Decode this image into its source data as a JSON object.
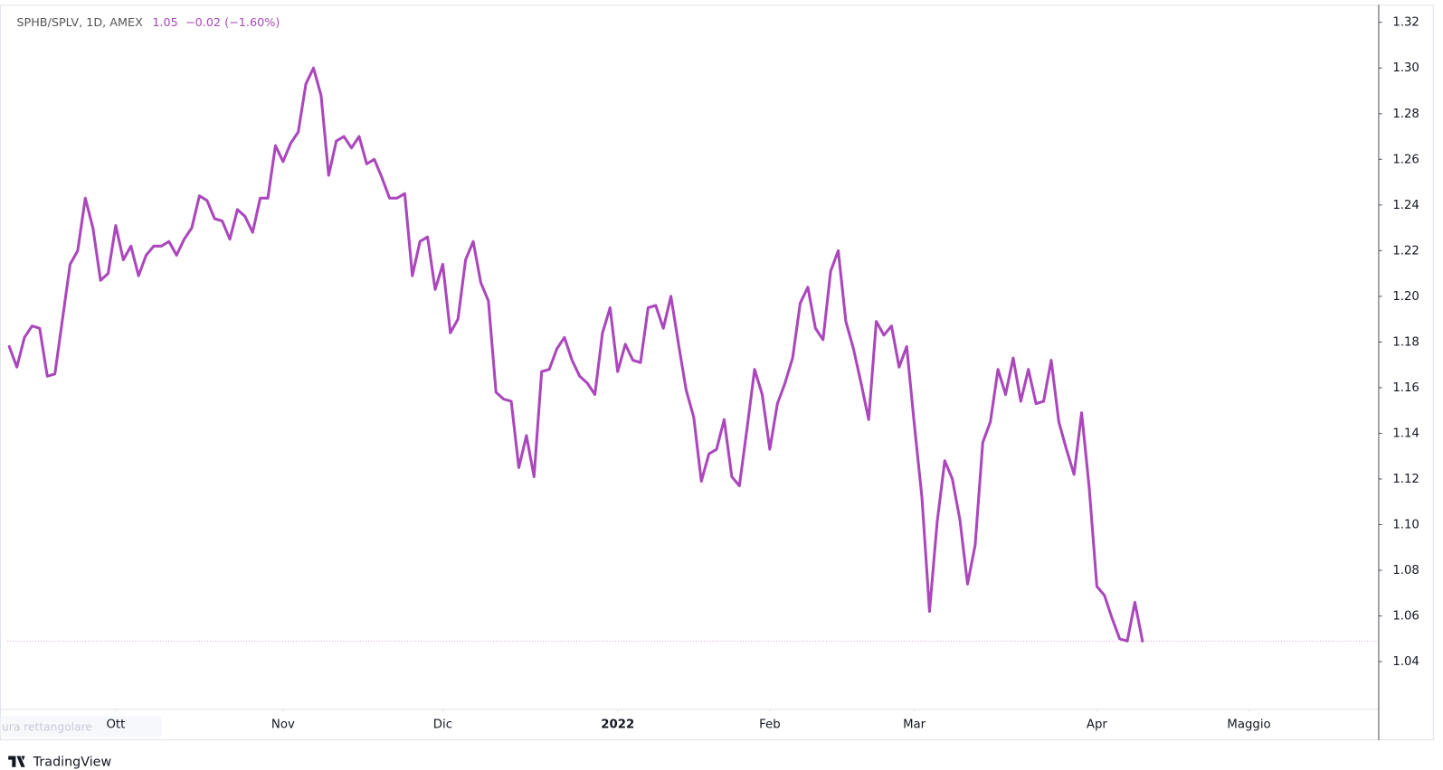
{
  "chart_data": {
    "type": "line",
    "series": [
      {
        "name": "SPHB/SPLV, 1D, AMEX",
        "color": "#ab47bc",
        "values": [
          1.178,
          1.169,
          1.182,
          1.187,
          1.186,
          1.165,
          1.166,
          1.19,
          1.214,
          1.22,
          1.243,
          1.23,
          1.207,
          1.21,
          1.231,
          1.216,
          1.222,
          1.209,
          1.218,
          1.222,
          1.222,
          1.224,
          1.218,
          1.225,
          1.23,
          1.244,
          1.242,
          1.234,
          1.233,
          1.225,
          1.238,
          1.235,
          1.228,
          1.243,
          1.243,
          1.266,
          1.259,
          1.267,
          1.272,
          1.293,
          1.3,
          1.288,
          1.253,
          1.268,
          1.27,
          1.265,
          1.27,
          1.258,
          1.26,
          1.252,
          1.243,
          1.243,
          1.245,
          1.209,
          1.224,
          1.226,
          1.203,
          1.214,
          1.184,
          1.19,
          1.216,
          1.224,
          1.206,
          1.198,
          1.158,
          1.155,
          1.154,
          1.125,
          1.139,
          1.121,
          1.167,
          1.168,
          1.177,
          1.182,
          1.172,
          1.165,
          1.162,
          1.157,
          1.184,
          1.195,
          1.167,
          1.179,
          1.172,
          1.171,
          1.195,
          1.196,
          1.186,
          1.2,
          1.179,
          1.159,
          1.147,
          1.119,
          1.131,
          1.133,
          1.146,
          1.121,
          1.117,
          1.142,
          1.168,
          1.157,
          1.133,
          1.153,
          1.162,
          1.173,
          1.197,
          1.204,
          1.186,
          1.181,
          1.211,
          1.22,
          1.189,
          1.177,
          1.162,
          1.146,
          1.189,
          1.183,
          1.187,
          1.169,
          1.178,
          1.144,
          1.112,
          1.062,
          1.101,
          1.128,
          1.12,
          1.102,
          1.074,
          1.091,
          1.136,
          1.145,
          1.168,
          1.157,
          1.173,
          1.154,
          1.168,
          1.153,
          1.154,
          1.172,
          1.145,
          1.133,
          1.122,
          1.149,
          1.116,
          1.073,
          1.069,
          1.059,
          1.05,
          1.049,
          1.066,
          1.049
        ]
      }
    ],
    "header": {
      "last": "1.05",
      "change": "−0.02 (−1.60%)"
    },
    "xlim": [
      0,
      180
    ],
    "xticks": [
      {
        "value": 14,
        "label": "Ott"
      },
      {
        "value": 36,
        "label": "Nov"
      },
      {
        "value": 57,
        "label": "Dic"
      },
      {
        "value": 80,
        "label": "2022"
      },
      {
        "value": 100,
        "label": "Feb"
      },
      {
        "value": 119,
        "label": "Mar"
      },
      {
        "value": 143,
        "label": "Apr"
      },
      {
        "value": 163,
        "label": "Maggio"
      }
    ],
    "ylim": [
      1.0193,
      1.3277
    ],
    "yticks": [
      1.04,
      1.06,
      1.08,
      {
        "value": 1.1,
        "label": "1.10"
      },
      1.12,
      1.14,
      1.16,
      1.18,
      {
        "value": 1.2,
        "label": "1.20"
      },
      1.22,
      1.24,
      1.26,
      1.28,
      {
        "value": 1.3,
        "label": "1.30"
      },
      1.32
    ],
    "grid": false,
    "price_line": true,
    "overlay_text": "ura rettangolare",
    "footer": "TradingView"
  }
}
